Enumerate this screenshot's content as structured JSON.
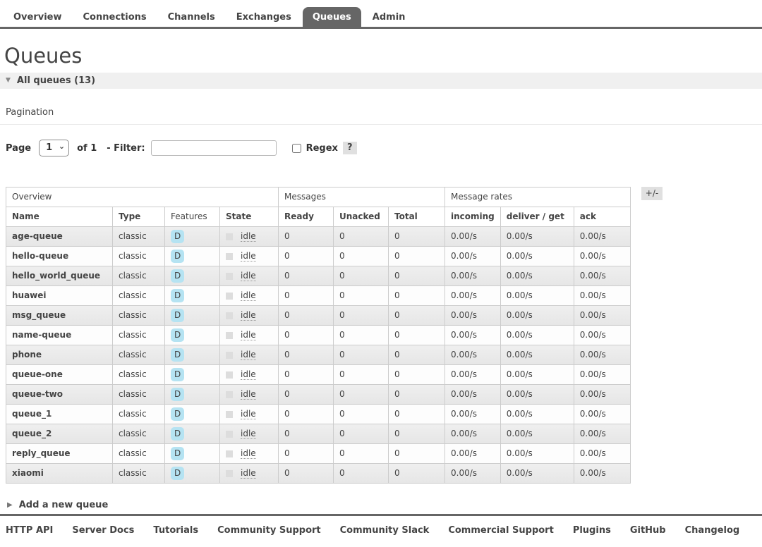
{
  "tabs": [
    {
      "label": "Overview",
      "selected": false
    },
    {
      "label": "Connections",
      "selected": false
    },
    {
      "label": "Channels",
      "selected": false
    },
    {
      "label": "Exchanges",
      "selected": false
    },
    {
      "label": "Queues",
      "selected": true
    },
    {
      "label": "Admin",
      "selected": false
    }
  ],
  "page": {
    "title": "Queues"
  },
  "sections": {
    "all_queues": {
      "label": "All queues (13)",
      "expanded": true
    },
    "add_queue": {
      "label": "Add a new queue",
      "expanded": false
    }
  },
  "pagination": {
    "label": "Pagination",
    "page_label": "Page",
    "page_value": "1",
    "of_label": "of 1",
    "filter_label": "- Filter:",
    "filter_value": "",
    "filter_placeholder": "",
    "regex_checked": false,
    "regex_label": "Regex",
    "help_label": "?"
  },
  "table": {
    "group_headers": [
      {
        "label": "Overview",
        "span": 4
      },
      {
        "label": "Messages",
        "span": 3
      },
      {
        "label": "Message rates",
        "span": 3
      }
    ],
    "columns": [
      {
        "label": "Name",
        "sortable": true
      },
      {
        "label": "Type",
        "sortable": true
      },
      {
        "label": "Features",
        "sortable": false
      },
      {
        "label": "State",
        "sortable": true
      },
      {
        "label": "Ready",
        "sortable": true
      },
      {
        "label": "Unacked",
        "sortable": true
      },
      {
        "label": "Total",
        "sortable": true
      },
      {
        "label": "incoming",
        "sortable": true
      },
      {
        "label": "deliver / get",
        "sortable": true
      },
      {
        "label": "ack",
        "sortable": true
      }
    ],
    "plus_minus_label": "+/-",
    "rows": [
      {
        "name": "age-queue",
        "type": "classic",
        "features": [
          "D"
        ],
        "state": "idle",
        "ready": "0",
        "unacked": "0",
        "total": "0",
        "incoming": "0.00/s",
        "deliver_get": "0.00/s",
        "ack": "0.00/s"
      },
      {
        "name": "hello-queue",
        "type": "classic",
        "features": [
          "D"
        ],
        "state": "idle",
        "ready": "0",
        "unacked": "0",
        "total": "0",
        "incoming": "0.00/s",
        "deliver_get": "0.00/s",
        "ack": "0.00/s"
      },
      {
        "name": "hello_world_queue",
        "type": "classic",
        "features": [
          "D"
        ],
        "state": "idle",
        "ready": "0",
        "unacked": "0",
        "total": "0",
        "incoming": "0.00/s",
        "deliver_get": "0.00/s",
        "ack": "0.00/s"
      },
      {
        "name": "huawei",
        "type": "classic",
        "features": [
          "D"
        ],
        "state": "idle",
        "ready": "0",
        "unacked": "0",
        "total": "0",
        "incoming": "0.00/s",
        "deliver_get": "0.00/s",
        "ack": "0.00/s"
      },
      {
        "name": "msg_queue",
        "type": "classic",
        "features": [
          "D"
        ],
        "state": "idle",
        "ready": "0",
        "unacked": "0",
        "total": "0",
        "incoming": "0.00/s",
        "deliver_get": "0.00/s",
        "ack": "0.00/s"
      },
      {
        "name": "name-queue",
        "type": "classic",
        "features": [
          "D"
        ],
        "state": "idle",
        "ready": "0",
        "unacked": "0",
        "total": "0",
        "incoming": "0.00/s",
        "deliver_get": "0.00/s",
        "ack": "0.00/s"
      },
      {
        "name": "phone",
        "type": "classic",
        "features": [
          "D"
        ],
        "state": "idle",
        "ready": "0",
        "unacked": "0",
        "total": "0",
        "incoming": "0.00/s",
        "deliver_get": "0.00/s",
        "ack": "0.00/s"
      },
      {
        "name": "queue-one",
        "type": "classic",
        "features": [
          "D"
        ],
        "state": "idle",
        "ready": "0",
        "unacked": "0",
        "total": "0",
        "incoming": "0.00/s",
        "deliver_get": "0.00/s",
        "ack": "0.00/s"
      },
      {
        "name": "queue-two",
        "type": "classic",
        "features": [
          "D"
        ],
        "state": "idle",
        "ready": "0",
        "unacked": "0",
        "total": "0",
        "incoming": "0.00/s",
        "deliver_get": "0.00/s",
        "ack": "0.00/s"
      },
      {
        "name": "queue_1",
        "type": "classic",
        "features": [
          "D"
        ],
        "state": "idle",
        "ready": "0",
        "unacked": "0",
        "total": "0",
        "incoming": "0.00/s",
        "deliver_get": "0.00/s",
        "ack": "0.00/s"
      },
      {
        "name": "queue_2",
        "type": "classic",
        "features": [
          "D"
        ],
        "state": "idle",
        "ready": "0",
        "unacked": "0",
        "total": "0",
        "incoming": "0.00/s",
        "deliver_get": "0.00/s",
        "ack": "0.00/s"
      },
      {
        "name": "reply_queue",
        "type": "classic",
        "features": [
          "D"
        ],
        "state": "idle",
        "ready": "0",
        "unacked": "0",
        "total": "0",
        "incoming": "0.00/s",
        "deliver_get": "0.00/s",
        "ack": "0.00/s"
      },
      {
        "name": "xiaomi",
        "type": "classic",
        "features": [
          "D"
        ],
        "state": "idle",
        "ready": "0",
        "unacked": "0",
        "total": "0",
        "incoming": "0.00/s",
        "deliver_get": "0.00/s",
        "ack": "0.00/s"
      }
    ]
  },
  "footer": {
    "links": [
      "HTTP API",
      "Server Docs",
      "Tutorials",
      "Community Support",
      "Community Slack",
      "Commercial Support",
      "Plugins",
      "GitHub",
      "Changelog"
    ]
  },
  "colors": {
    "accent": "#666666",
    "selected_tab_bg": "#666666",
    "feature_badge_bg": "#b5e3f2",
    "state_idle_swatch": "#dddddd",
    "section_bar_bg": "#f0f0f0"
  }
}
